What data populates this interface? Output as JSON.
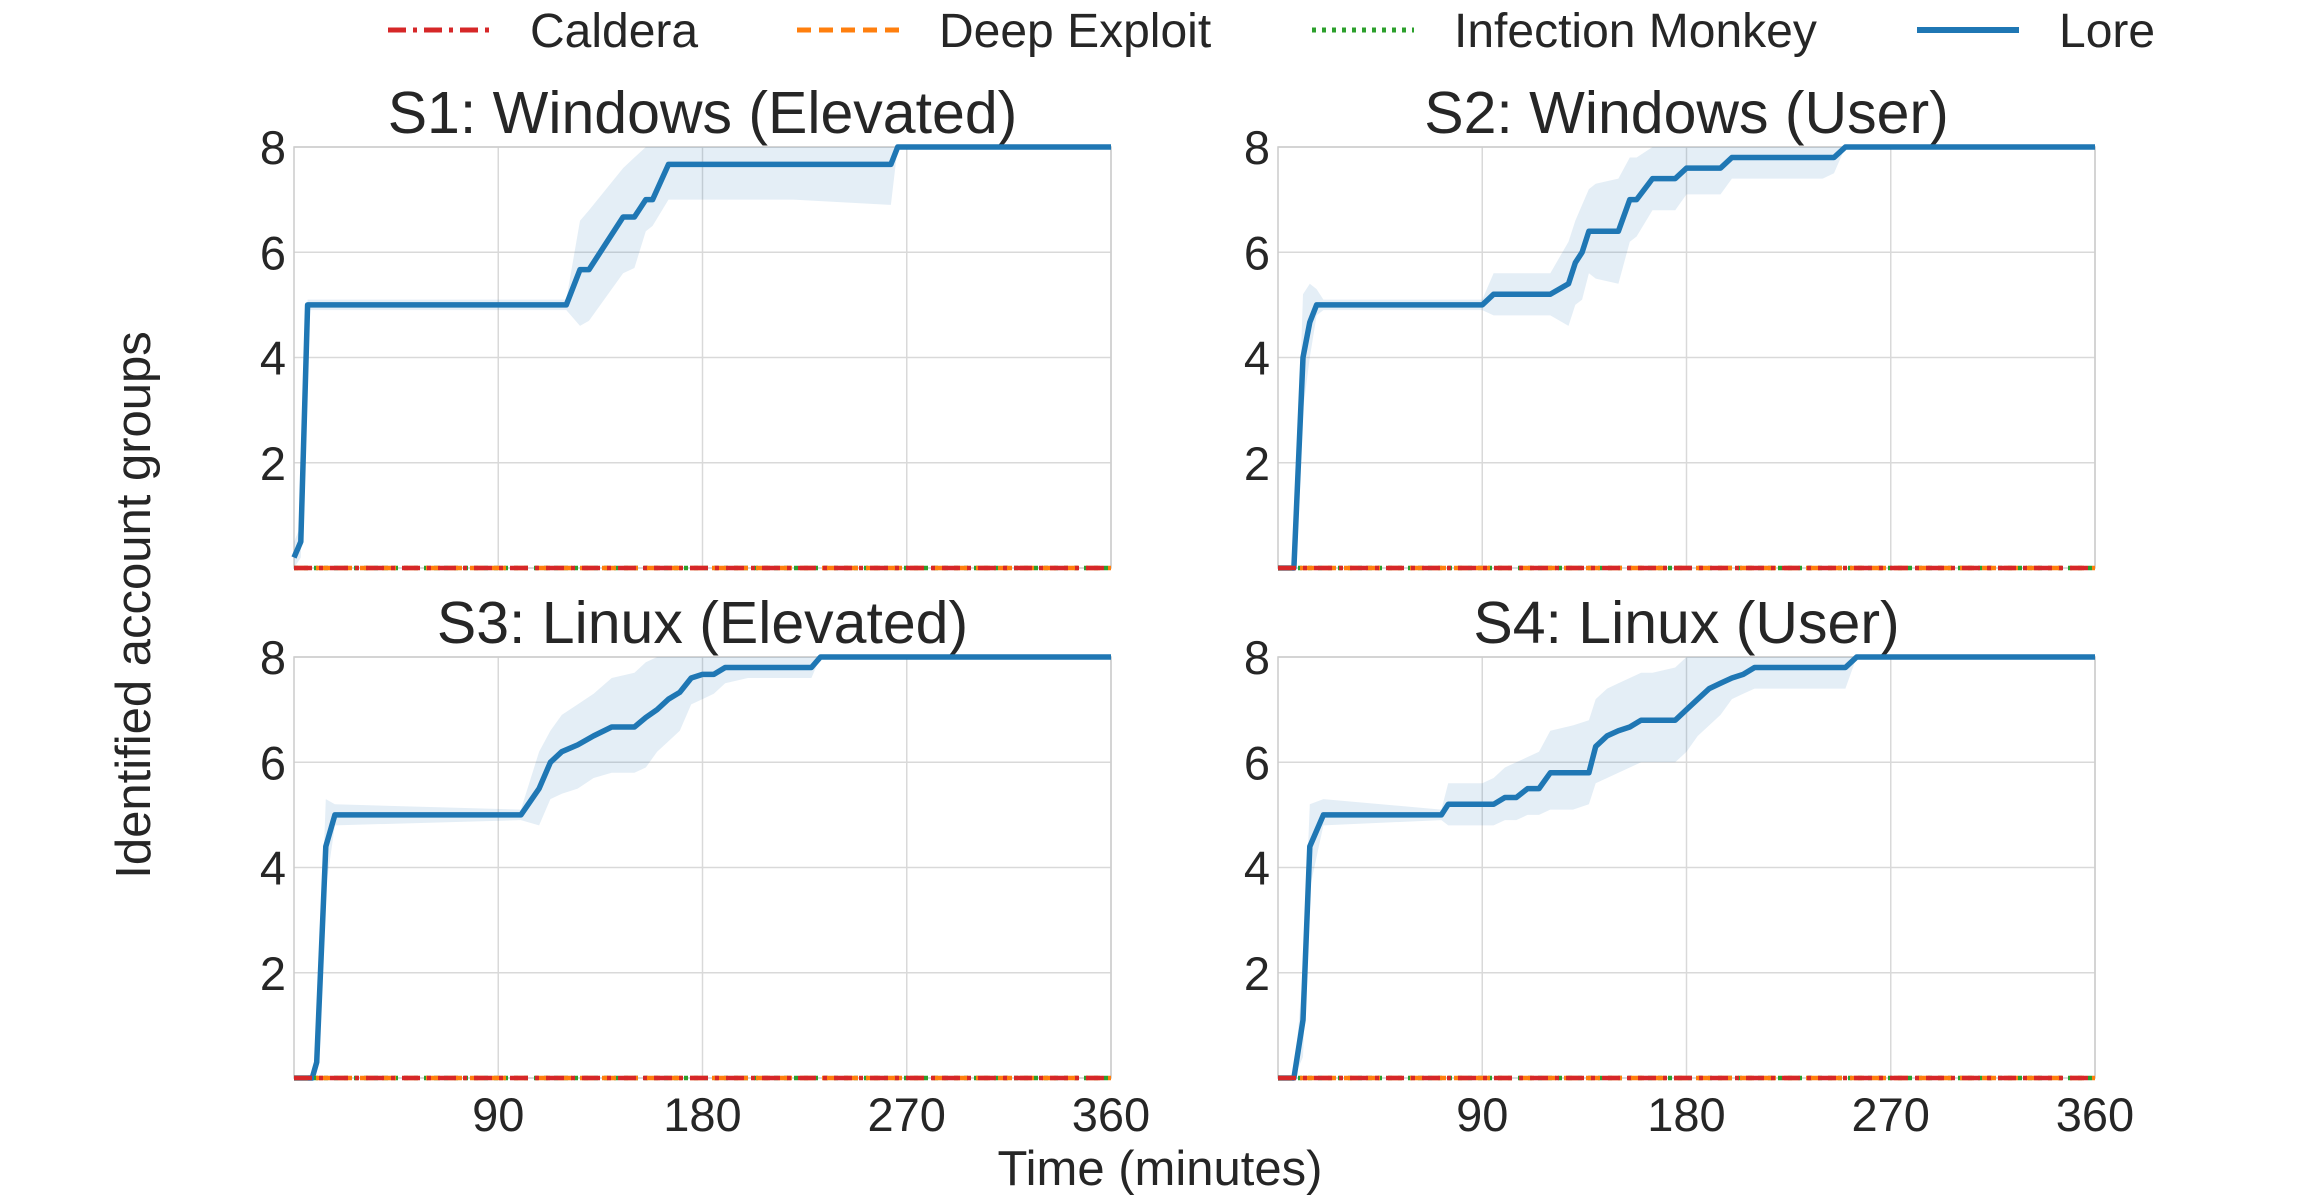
{
  "chart_data": {
    "type": "line",
    "title": "",
    "xlabel": "Time (minutes)",
    "ylabel": "Identified account groups",
    "xlim": [
      0,
      360
    ],
    "ylim": [
      0,
      8
    ],
    "xticks": [
      90,
      180,
      270,
      360
    ],
    "yticks": [
      2,
      4,
      6,
      8
    ],
    "grid": true,
    "legend": {
      "placement": "top",
      "entries": [
        {
          "name": "Caldera",
          "color": "#d62728",
          "style": "dashdot"
        },
        {
          "name": "Deep Exploit",
          "color": "#ff7f0e",
          "style": "dashed"
        },
        {
          "name": "Infection Monkey",
          "color": "#2ca02c",
          "style": "dotted"
        },
        {
          "name": "Lore",
          "color": "#1f77b4",
          "style": "solid"
        }
      ]
    },
    "panels": [
      {
        "title": "S1: Windows (Elevated)",
        "series": [
          {
            "name": "Caldera",
            "x": [
              0,
              360
            ],
            "y": [
              0,
              0
            ]
          },
          {
            "name": "Deep Exploit",
            "x": [
              0,
              360
            ],
            "y": [
              0,
              0
            ]
          },
          {
            "name": "Infection Monkey",
            "x": [
              0,
              360
            ],
            "y": [
              0,
              0
            ]
          },
          {
            "name": "Lore",
            "x": [
              0,
              3,
              6,
              120,
              126,
              130,
              145,
              150,
              155,
              158,
              165,
              180,
              220,
              263,
              266,
              360
            ],
            "y": [
              0.2,
              0.5,
              5,
              5,
              5.67,
              5.67,
              6.67,
              6.67,
              7,
              7,
              7.67,
              7.67,
              7.67,
              7.67,
              8,
              8
            ],
            "band_upper": [
              0.5,
              0.8,
              5.1,
              5.1,
              6.6,
              6.8,
              7.6,
              7.8,
              8,
              8,
              8,
              8,
              8,
              8,
              8,
              8
            ],
            "band_lower": [
              0,
              0.2,
              4.9,
              4.9,
              4.6,
              4.7,
              5.6,
              5.7,
              6.4,
              6.5,
              7,
              7,
              7,
              6.9,
              8,
              8
            ]
          }
        ]
      },
      {
        "title": "S2: Windows (User)",
        "series": [
          {
            "name": "Caldera",
            "x": [
              0,
              360
            ],
            "y": [
              0,
              0
            ]
          },
          {
            "name": "Deep Exploit",
            "x": [
              0,
              360
            ],
            "y": [
              0,
              0
            ]
          },
          {
            "name": "Infection Monkey",
            "x": [
              0,
              360
            ],
            "y": [
              0,
              0
            ]
          },
          {
            "name": "Lore",
            "x": [
              0,
              7,
              11,
              14,
              17,
              20,
              90,
              95,
              120,
              128,
              131,
              134,
              137,
              140,
              150,
              155,
              158,
              165,
              175,
              180,
              185,
              195,
              200,
              240,
              245,
              250,
              360
            ],
            "y": [
              0,
              0,
              4,
              4.67,
              5,
              5,
              5,
              5.2,
              5.2,
              5.4,
              5.8,
              6,
              6.4,
              6.4,
              6.4,
              7,
              7,
              7.4,
              7.4,
              7.6,
              7.6,
              7.6,
              7.8,
              7.8,
              7.8,
              8,
              8
            ],
            "band_upper": [
              0,
              0,
              5.2,
              5.4,
              5.3,
              5.1,
              5.1,
              5.6,
              5.6,
              6.2,
              6.6,
              6.9,
              7.2,
              7.3,
              7.4,
              7.8,
              7.8,
              8,
              8,
              8,
              8,
              8,
              8,
              8,
              8,
              8,
              8
            ],
            "band_lower": [
              0,
              0,
              3,
              4,
              4.8,
              4.9,
              4.9,
              4.8,
              4.8,
              4.6,
              5,
              5.1,
              5.6,
              5.5,
              5.4,
              6.2,
              6.3,
              6.8,
              6.8,
              7.1,
              7.1,
              7.1,
              7.4,
              7.4,
              7.5,
              8,
              8
            ]
          }
        ]
      },
      {
        "title": "S3: Linux (Elevated)",
        "series": [
          {
            "name": "Caldera",
            "x": [
              0,
              360
            ],
            "y": [
              0,
              0
            ]
          },
          {
            "name": "Deep Exploit",
            "x": [
              0,
              360
            ],
            "y": [
              0,
              0
            ]
          },
          {
            "name": "Infection Monkey",
            "x": [
              0,
              360
            ],
            "y": [
              0,
              0
            ]
          },
          {
            "name": "Lore",
            "x": [
              0,
              8,
              10,
              14,
              18,
              100,
              108,
              113,
              118,
              125,
              132,
              140,
              150,
              155,
              160,
              165,
              170,
              175,
              180,
              185,
              190,
              200,
              228,
              232,
              360
            ],
            "y": [
              0,
              0,
              0.3,
              4.4,
              5,
              5,
              5.5,
              6,
              6.2,
              6.33,
              6.5,
              6.67,
              6.67,
              6.85,
              7,
              7.2,
              7.33,
              7.6,
              7.67,
              7.67,
              7.8,
              7.8,
              7.8,
              8,
              8
            ],
            "band_upper": [
              0,
              0,
              0.6,
              5.3,
              5.2,
              5.1,
              6.2,
              6.6,
              6.9,
              7.1,
              7.3,
              7.6,
              7.7,
              7.9,
              8,
              8,
              8,
              8,
              8,
              8,
              8,
              8,
              8,
              8,
              8
            ],
            "band_lower": [
              0,
              0,
              0.1,
              3.6,
              4.8,
              4.9,
              4.8,
              5.3,
              5.4,
              5.5,
              5.7,
              5.8,
              5.8,
              5.9,
              6.2,
              6.4,
              6.6,
              7.1,
              7.2,
              7.3,
              7.5,
              7.6,
              7.6,
              8,
              8
            ]
          }
        ]
      },
      {
        "title": "S4: Linux (User)",
        "series": [
          {
            "name": "Caldera",
            "x": [
              0,
              360
            ],
            "y": [
              0,
              0
            ]
          },
          {
            "name": "Deep Exploit",
            "x": [
              0,
              360
            ],
            "y": [
              0,
              0
            ]
          },
          {
            "name": "Infection Monkey",
            "x": [
              0,
              360
            ],
            "y": [
              0,
              0
            ]
          },
          {
            "name": "Lore",
            "x": [
              0,
              7,
              11,
              14,
              20,
              72,
              75,
              90,
              95,
              100,
              105,
              110,
              115,
              120,
              130,
              137,
              140,
              145,
              150,
              155,
              160,
              165,
              175,
              180,
              185,
              190,
              195,
              200,
              205,
              210,
              250,
              255,
              360
            ],
            "y": [
              0,
              0,
              1.1,
              4.4,
              5,
              5,
              5.2,
              5.2,
              5.2,
              5.33,
              5.33,
              5.5,
              5.5,
              5.8,
              5.8,
              5.8,
              6.3,
              6.5,
              6.6,
              6.67,
              6.8,
              6.8,
              6.8,
              7,
              7.2,
              7.4,
              7.5,
              7.6,
              7.67,
              7.8,
              7.8,
              8,
              8
            ],
            "band_upper": [
              0,
              0,
              2,
              5.2,
              5.3,
              5.1,
              5.6,
              5.6,
              5.7,
              5.9,
              6,
              6.1,
              6.2,
              6.6,
              6.7,
              6.8,
              7.2,
              7.4,
              7.5,
              7.6,
              7.7,
              7.7,
              7.8,
              8,
              8,
              8,
              8,
              8,
              8,
              8,
              8,
              8,
              8
            ],
            "band_lower": [
              0,
              0,
              0.4,
              3.6,
              4.8,
              4.9,
              4.8,
              4.8,
              4.8,
              4.9,
              4.9,
              5,
              5,
              5.1,
              5.1,
              5.2,
              5.6,
              5.7,
              5.8,
              5.9,
              6,
              6,
              6,
              6.2,
              6.5,
              6.7,
              6.9,
              7.2,
              7.3,
              7.4,
              7.4,
              8,
              8
            ]
          }
        ]
      }
    ]
  }
}
